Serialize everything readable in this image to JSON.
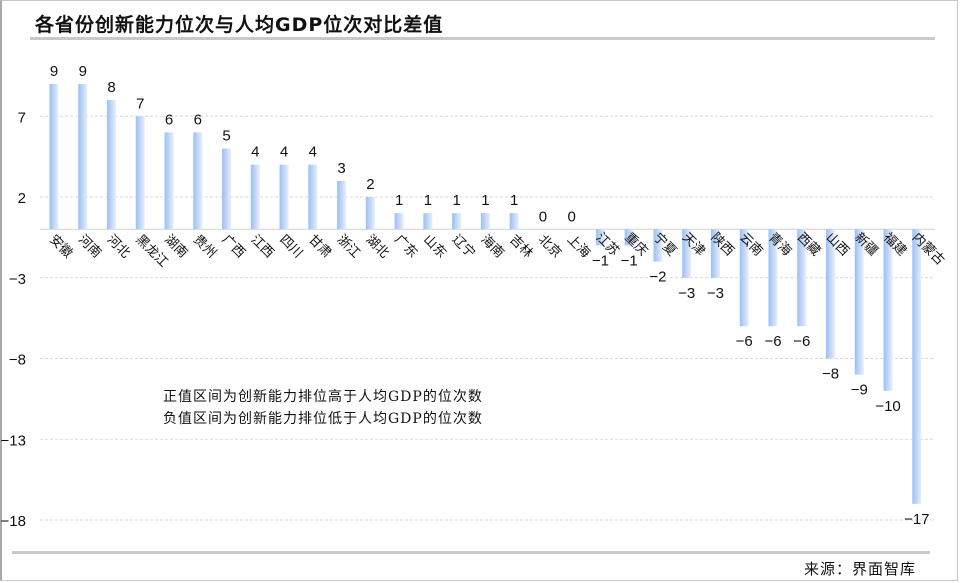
{
  "title": "各省份创新能力位次与人均GDP位次对比差值",
  "source": "来源：界面智库",
  "notes": [
    "正值区间为创新能力排位高于人均GDP的位次数",
    "负值区间为创新能力排位低于人均GDP的位次数"
  ],
  "colors": {
    "bar_light": "#e6efff",
    "bar_dark": "#9cbff0",
    "grid": "#d9d9d9",
    "axis": "#d0d0d0"
  },
  "chart_data": {
    "type": "bar",
    "title": "各省份创新能力位次与人均GDP位次对比差值",
    "xlabel": "",
    "ylabel": "",
    "ylim": [
      -18,
      10
    ],
    "yticks": [
      7,
      2,
      -3,
      -8,
      -13,
      -18
    ],
    "grid": true,
    "legend": "none",
    "categories": [
      "安徽",
      "河南",
      "河北",
      "黑龙江",
      "湖南",
      "贵州",
      "广西",
      "江西",
      "四川",
      "甘肃",
      "浙江",
      "湖北",
      "广东",
      "山东",
      "辽宁",
      "海南",
      "吉林",
      "北京",
      "上海",
      "江苏",
      "重庆",
      "宁夏",
      "天津",
      "陕西",
      "云南",
      "青海",
      "西藏",
      "山西",
      "新疆",
      "福建",
      "内蒙古"
    ],
    "values": [
      9,
      9,
      8,
      7,
      6,
      6,
      5,
      4,
      4,
      4,
      3,
      2,
      1,
      1,
      1,
      1,
      1,
      0,
      0,
      -1,
      -1,
      -2,
      -3,
      -3,
      -6,
      -6,
      -6,
      -8,
      -9,
      -10,
      -17
    ],
    "annotations": [
      "正值区间为创新能力排位高于人均GDP的位次数",
      "负值区间为创新能力排位低于人均GDP的位次数"
    ]
  }
}
